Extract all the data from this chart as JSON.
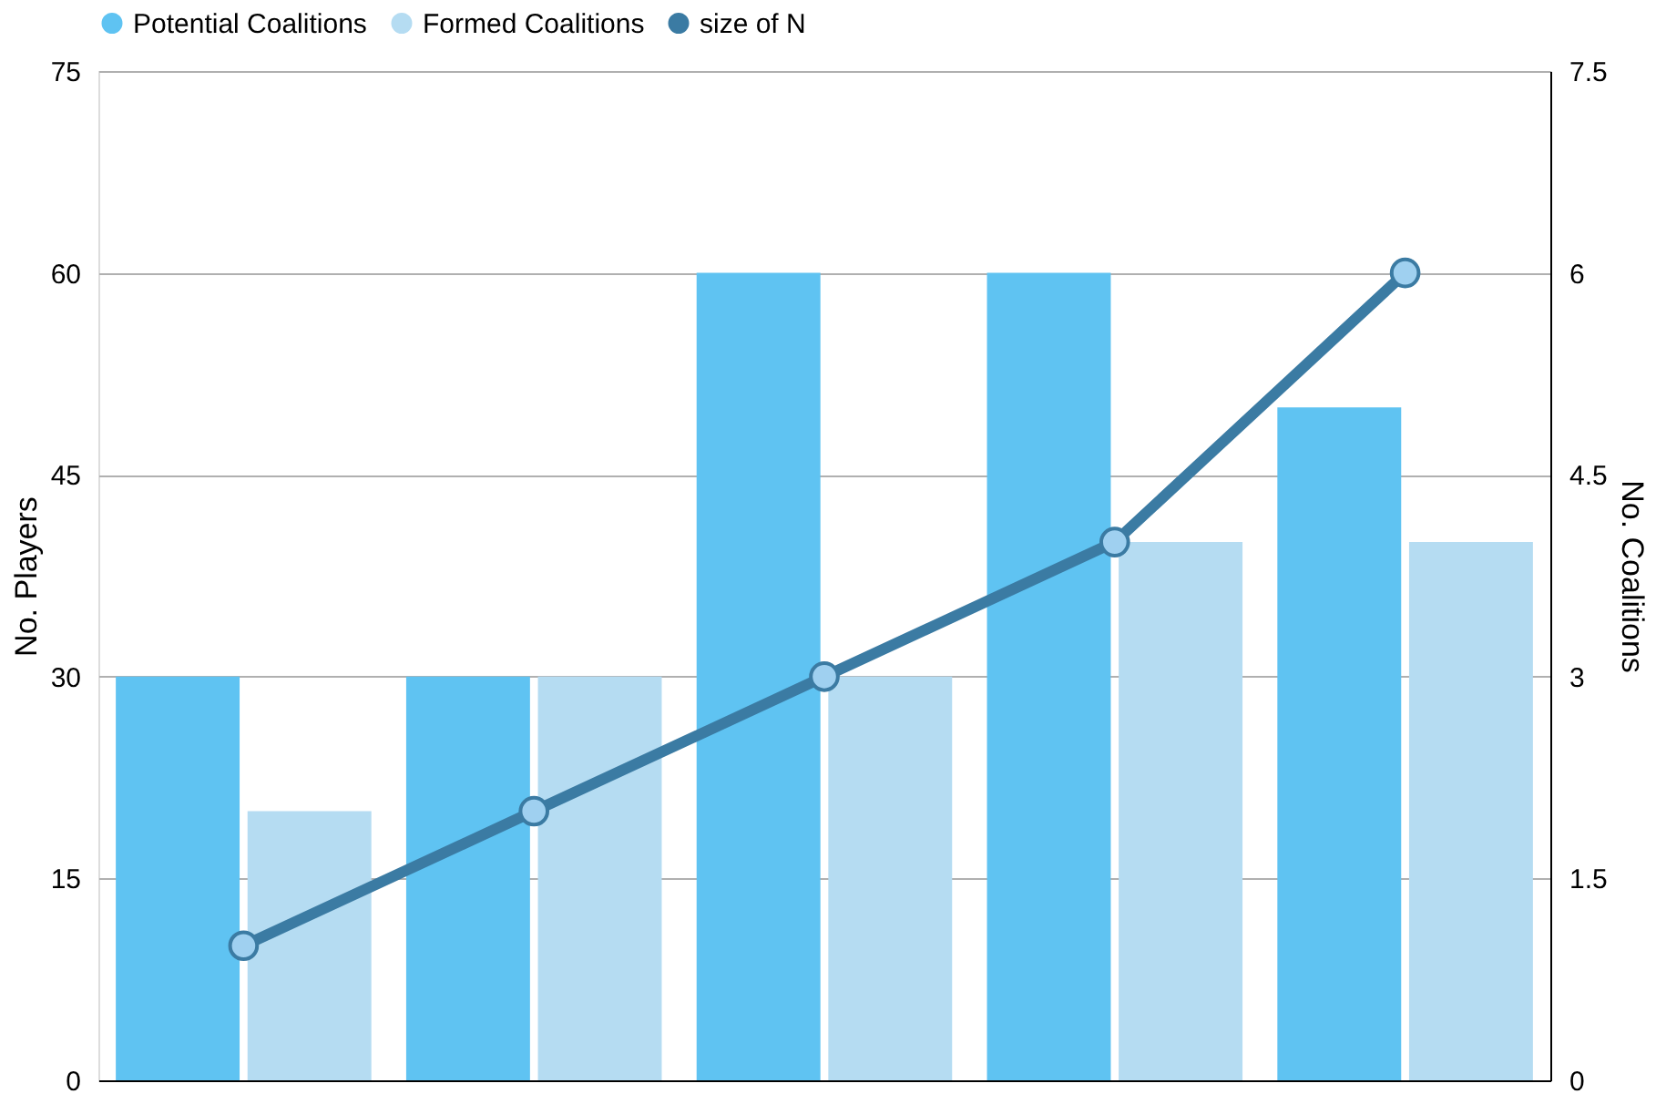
{
  "chart_data": {
    "type": "bar",
    "categories": [
      null,
      null,
      null,
      null,
      null
    ],
    "ylabel": "No. Players",
    "y2label": "No. Coalitions",
    "ylim": [
      0,
      75
    ],
    "yticks": [
      0,
      15,
      30,
      45,
      60,
      75
    ],
    "y2lim": [
      0,
      7.5
    ],
    "y2ticks": [
      0,
      1.5,
      3,
      4.5,
      6,
      7.5
    ],
    "grid": "y",
    "legend": "top",
    "series": [
      {
        "name": "Potential Coalitions",
        "color": "#5fc3f2",
        "axis": "y2",
        "values": [
          3,
          3,
          6,
          6,
          5
        ]
      },
      {
        "name": "Formed Coalitions",
        "color": "#b5dcf2",
        "axis": "y2",
        "values": [
          2,
          3,
          3,
          4,
          4
        ]
      },
      {
        "name": "size of N",
        "type": "line",
        "color": "#3b7ba3",
        "marker": "circle",
        "values": [
          10,
          20,
          30,
          40,
          60
        ]
      }
    ]
  }
}
